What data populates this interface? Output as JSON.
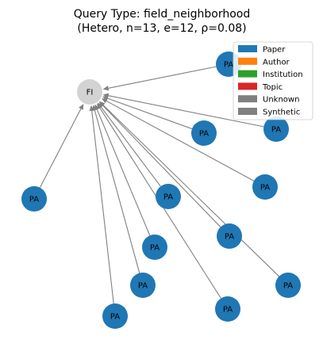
{
  "title": {
    "line1": "Query Type: field_neighborhood",
    "line2": "(Hetero, n=13, e=12, ρ=0.08)"
  },
  "colors": {
    "paper": "#1f77b4",
    "author": "#ff7f0e",
    "institution": "#2ca02c",
    "topic": "#d62728",
    "unknown": "#7f7f7f",
    "synthetic": "#808080",
    "field_node": "#d3d3d3",
    "edge": "#808080"
  },
  "legend": [
    {
      "label": "Paper",
      "color": "#1f77b4"
    },
    {
      "label": "Author",
      "color": "#ff7f0e"
    },
    {
      "label": "Institution",
      "color": "#2ca02c"
    },
    {
      "label": "Topic",
      "color": "#d62728"
    },
    {
      "label": "Unknown",
      "color": "#7f7f7f"
    },
    {
      "label": "Synthetic",
      "color": "#808080"
    }
  ],
  "hub": {
    "id": "fi",
    "label": "FI",
    "type": "field"
  },
  "nodes": [
    {
      "id": "pa1",
      "label": "PA",
      "type": "paper"
    },
    {
      "id": "pa2",
      "label": "PA",
      "type": "paper"
    },
    {
      "id": "pa3",
      "label": "PA",
      "type": "paper"
    },
    {
      "id": "pa4",
      "label": "PA",
      "type": "paper"
    },
    {
      "id": "pa5",
      "label": "PA",
      "type": "paper"
    },
    {
      "id": "pa6",
      "label": "PA",
      "type": "paper"
    },
    {
      "id": "pa7",
      "label": "PA",
      "type": "paper"
    },
    {
      "id": "pa8",
      "label": "PA",
      "type": "paper"
    },
    {
      "id": "pa9",
      "label": "PA",
      "type": "paper"
    },
    {
      "id": "pa10",
      "label": "PA",
      "type": "paper"
    },
    {
      "id": "pa11",
      "label": "PA",
      "type": "paper"
    },
    {
      "id": "pa12",
      "label": "PA",
      "type": "paper"
    }
  ],
  "edges": [
    {
      "from": "pa1",
      "to": "fi"
    },
    {
      "from": "pa2",
      "to": "fi"
    },
    {
      "from": "pa3",
      "to": "fi"
    },
    {
      "from": "pa4",
      "to": "fi"
    },
    {
      "from": "pa5",
      "to": "fi"
    },
    {
      "from": "pa6",
      "to": "fi"
    },
    {
      "from": "pa7",
      "to": "fi"
    },
    {
      "from": "pa8",
      "to": "fi"
    },
    {
      "from": "pa9",
      "to": "fi"
    },
    {
      "from": "pa10",
      "to": "fi"
    },
    {
      "from": "pa11",
      "to": "fi"
    },
    {
      "from": "pa12",
      "to": "fi"
    }
  ]
}
